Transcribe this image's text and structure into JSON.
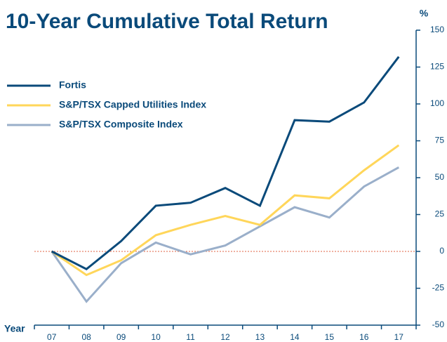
{
  "chart_data": {
    "type": "line",
    "title": "10-Year Cumulative Total Return",
    "y_label": "%",
    "x_label": "Year",
    "categories": [
      "07",
      "08",
      "09",
      "10",
      "11",
      "12",
      "13",
      "14",
      "15",
      "16",
      "17"
    ],
    "series": [
      {
        "name": "Fortis",
        "color": "#0a4a7a",
        "values": [
          0,
          -12,
          7,
          31,
          33,
          43,
          31,
          89,
          88,
          101,
          132
        ]
      },
      {
        "name": "S&P/TSX Capped Utilities Index",
        "color": "#ffd65a",
        "values": [
          0,
          -16,
          -6,
          11,
          18,
          24,
          18,
          38,
          36,
          55,
          72
        ]
      },
      {
        "name": "S&P/TSX Composite Index",
        "color": "#9aafca",
        "values": [
          0,
          -34,
          -8,
          6,
          -2,
          4,
          17,
          30,
          23,
          44,
          57
        ]
      }
    ],
    "ylim": [
      -50,
      150
    ],
    "yticks": [
      -50,
      -25,
      0,
      25,
      50,
      75,
      100,
      125,
      150
    ],
    "zero_line_color": "#e06040"
  }
}
